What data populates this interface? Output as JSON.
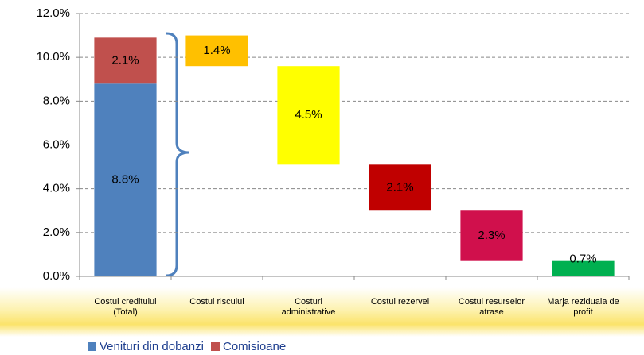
{
  "chart_data": {
    "type": "waterfall",
    "categories": [
      "Costul creditului (Total)",
      "Costul riscului",
      "Costuri administrative",
      "Costul rezervei",
      "Costul resurselor atrase",
      "Marja reziduala de profit"
    ],
    "series": [
      {
        "name": "Venituri din dobanzi",
        "color": "#4f81bd",
        "values": [
          8.8,
          null,
          null,
          null,
          null,
          null
        ],
        "value_labels": [
          "8.8%",
          null,
          null,
          null,
          null,
          null
        ]
      },
      {
        "name": "Comisioane",
        "color": "#c0504d",
        "values": [
          2.1,
          null,
          null,
          null,
          null,
          null
        ],
        "value_labels": [
          "2.1%",
          null,
          null,
          null,
          null,
          null
        ]
      }
    ],
    "values": [
      null,
      1.4,
      4.5,
      2.1,
      2.3,
      0.7
    ],
    "value_labels": [
      null,
      "1.4%",
      "4.5%",
      "2.1%",
      "2.3%",
      "0.7%"
    ],
    "colors": [
      null,
      "#ffc000",
      "#ffff00",
      "#c00000",
      "#d0104c",
      "#00b050"
    ],
    "ylim": [
      0,
      12
    ],
    "yticks": [
      {
        "value": 0,
        "label": "0.0%"
      },
      {
        "value": 2,
        "label": "2.0%"
      },
      {
        "value": 4,
        "label": "4.0%"
      },
      {
        "value": 6,
        "label": "6.0%"
      },
      {
        "value": 8,
        "label": "8.0%"
      },
      {
        "value": 10,
        "label": "10.0%"
      },
      {
        "value": 12,
        "label": "12.0%"
      }
    ],
    "grid": true
  }
}
